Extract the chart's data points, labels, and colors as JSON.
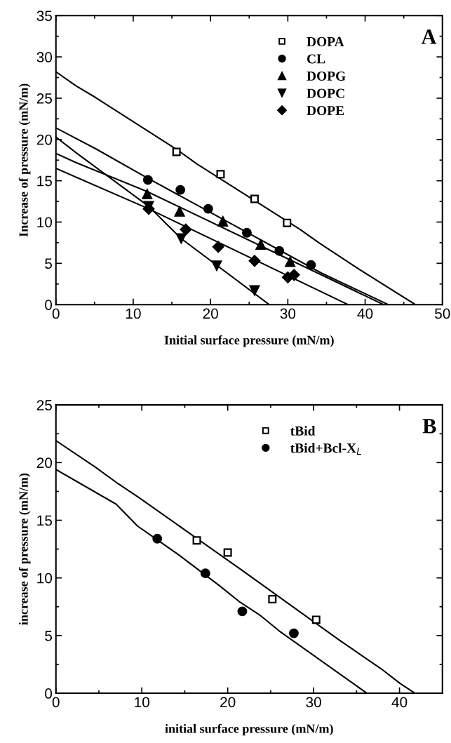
{
  "chart_data": [
    {
      "type": "scatter",
      "xlabel": "Initial surface pressure (mN/m)",
      "ylabel": "Increase of pressure (mN/m)",
      "annotations": [
        "A"
      ],
      "xlim": [
        0,
        50
      ],
      "xticks": [
        0,
        10,
        20,
        30,
        40,
        50
      ],
      "ylim": [
        0,
        35
      ],
      "yticks": [
        0,
        5,
        10,
        15,
        20,
        25,
        30,
        35
      ],
      "legend": "top",
      "grid": false,
      "series": [
        {
          "name": "DOPA",
          "color": "#000000",
          "marker": "square",
          "x": [
            15.6,
            21.3,
            25.7,
            29.9
          ],
          "values": [
            18.5,
            15.8,
            12.8,
            9.9
          ]
        },
        {
          "name": "CL",
          "color": "#000000",
          "marker": "circle",
          "x": [
            11.9,
            16.1,
            19.7,
            24.7,
            28.9,
            33.0
          ],
          "values": [
            15.1,
            13.9,
            11.6,
            8.7,
            6.5,
            4.8
          ]
        },
        {
          "name": "DOPG",
          "color": "#000000",
          "marker": "triangle",
          "x": [
            11.8,
            16.0,
            21.6,
            26.5,
            30.3
          ],
          "values": [
            13.4,
            11.3,
            10.1,
            7.3,
            5.2
          ]
        },
        {
          "name": "DOPC",
          "color": "#000000",
          "marker": "triangle_down",
          "x": [
            12.0,
            16.2,
            20.8,
            25.7
          ],
          "values": [
            11.9,
            8.0,
            4.7,
            1.7
          ]
        },
        {
          "name": "DOPE",
          "color": "#000000",
          "marker": "diamond",
          "x": [
            12.0,
            16.8,
            21.0,
            25.7,
            30.0,
            30.8
          ],
          "values": [
            11.6,
            9.1,
            7.0,
            5.3,
            3.3,
            3.6
          ]
        },
        {
          "type": "line",
          "color": "#000000",
          "x": [
            0,
            2.6,
            5.1,
            15.6,
            18.3,
            31.6,
            34.0,
            39.2,
            46.5
          ],
          "values": [
            28.2,
            26.5,
            25.1,
            18.8,
            17.0,
            9.1,
            7.5,
            4.3,
            0
          ]
        },
        {
          "type": "line",
          "color": "#000000",
          "x": [
            0,
            5.1,
            11.9,
            34.4,
            43.0
          ],
          "values": [
            21.4,
            18.9,
            15.3,
            3.8,
            0
          ]
        },
        {
          "type": "line",
          "color": "#000000",
          "x": [
            0,
            2.6,
            11.8,
            42.4
          ],
          "values": [
            18.3,
            17.2,
            13.7,
            0
          ]
        },
        {
          "type": "line",
          "color": "#000000",
          "x": [
            0,
            2.6,
            12.0,
            16.2,
            27.6
          ],
          "values": [
            20.3,
            18.4,
            11.9,
            8.0,
            0
          ]
        },
        {
          "type": "line",
          "color": "#000000",
          "x": [
            0,
            12.0,
            37.8
          ],
          "values": [
            16.5,
            11.6,
            0
          ]
        }
      ]
    },
    {
      "type": "scatter",
      "xlabel": "initial surface pressure (mN/m)",
      "ylabel": "increase of pressure (mN/m)",
      "annotations": [
        "B"
      ],
      "xlim": [
        0,
        45
      ],
      "xticks": [
        0,
        10,
        20,
        30,
        40
      ],
      "ylim": [
        0,
        25
      ],
      "yticks": [
        0,
        5,
        10,
        15,
        20,
        25
      ],
      "legend": "top",
      "grid": false,
      "series": [
        {
          "name": "tBid",
          "color": "#000000",
          "marker": "square",
          "x": [
            16.4,
            20.0,
            25.2,
            30.3
          ],
          "values": [
            13.25,
            12.2,
            8.15,
            6.37
          ]
        },
        {
          "name": "tBid+Bcl-X$_{L}$",
          "color": "#000000",
          "marker": "circle",
          "x": [
            11.8,
            17.4,
            21.7,
            27.7
          ],
          "values": [
            13.4,
            10.4,
            7.1,
            5.2
          ]
        },
        {
          "type": "line",
          "color": "#000000",
          "x": [
            0,
            4.6,
            7.0,
            9.6,
            21.3,
            33.0,
            37.9,
            40.1,
            41.8
          ],
          "values": [
            21.9,
            19.6,
            18.3,
            17.0,
            10.85,
            4.6,
            2.1,
            0.83,
            0
          ]
        },
        {
          "type": "line",
          "color": "#000000",
          "x": [
            0,
            7.0,
            9.5,
            14.3,
            19.0,
            21.3,
            23.7,
            26.0,
            36.2
          ],
          "values": [
            19.4,
            16.4,
            14.5,
            12.0,
            9.35,
            7.97,
            6.8,
            5.4,
            0
          ]
        }
      ]
    }
  ]
}
